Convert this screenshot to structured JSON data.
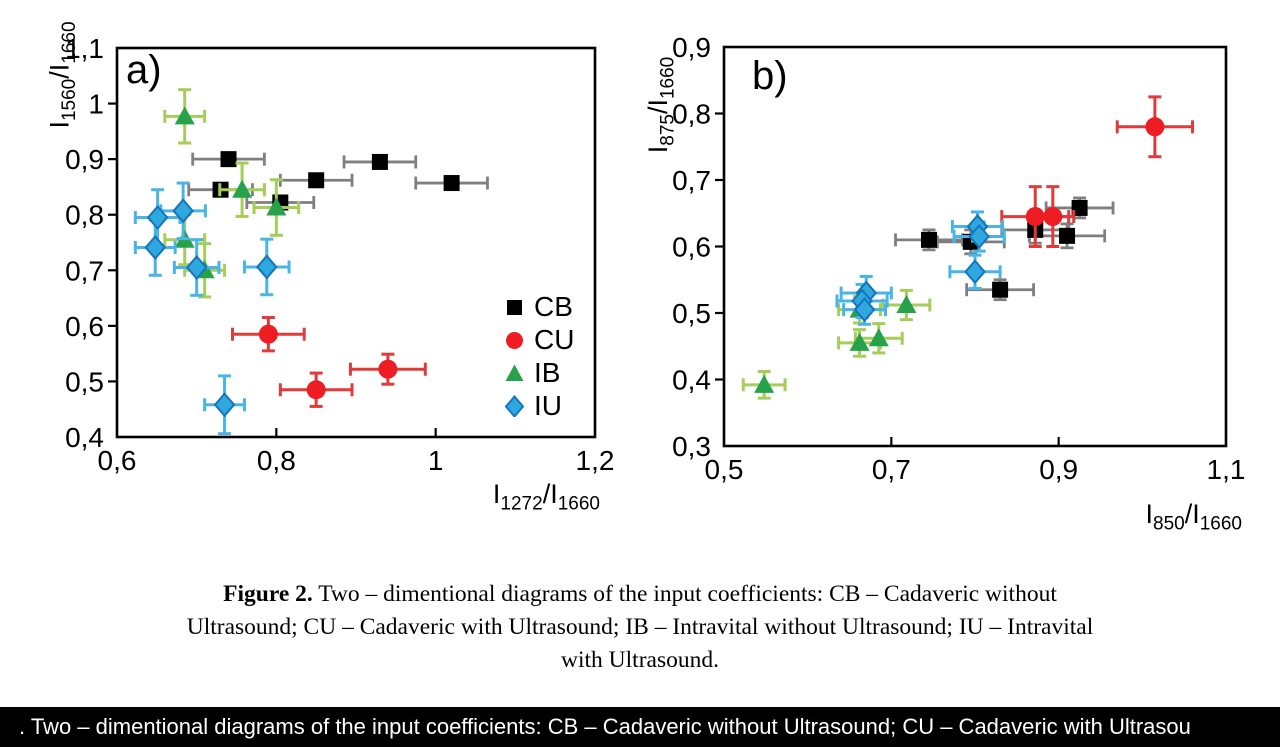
{
  "page": {
    "background": "#ffffff"
  },
  "colors": {
    "cb_marker": "#000000",
    "cb_errorbar": "#7f7f7f",
    "cu_marker": "#ee1d23",
    "cu_errorbar": "#e03a3a",
    "ib_marker": "#27a24b",
    "ib_errorbar": "#a4cd5a",
    "iu_marker_fill": "#2fa8df",
    "iu_marker_stroke": "#1574ba",
    "iu_errorbar": "#49b5e7",
    "bar_background": "#000000",
    "bar_text": "#ffffff"
  },
  "chart_data": [
    {
      "type": "scatter",
      "tag": "a)",
      "xlabel": "I1272/I1660",
      "ylabel": "I1560/I1660",
      "xlabel_parts": {
        "base1": "I",
        "sub1": "1272",
        "base2": "/I",
        "sub2": "1660"
      },
      "ylabel_parts": {
        "base1": "I",
        "sub1": "1560",
        "base2": "/I",
        "sub2": "1660"
      },
      "xlim": [
        0.6,
        1.2
      ],
      "ylim": [
        0.4,
        1.1
      ],
      "x_tick_values": [
        0.6,
        0.8,
        1.0,
        1.2
      ],
      "x_tick_labels": [
        "0,6",
        "0,8",
        "1",
        "1,2"
      ],
      "y_tick_values": [
        1.1,
        1.0,
        0.9,
        0.8,
        0.7,
        0.6,
        0.5,
        0.4
      ],
      "y_tick_labels": [
        "1,1",
        "1",
        "0,9",
        "0,8",
        "0,7",
        "0,6",
        "0,5",
        "0,4"
      ],
      "grid": false,
      "legend_position": "lower right inside",
      "series": [
        {
          "name": "CB",
          "marker": "square",
          "color": "#000000",
          "stroke": "none",
          "err_color": "#7f7f7f",
          "points": [
            [
              0.74,
              0.9,
              0.045,
              0
            ],
            [
              0.93,
              0.895,
              0.045,
              0
            ],
            [
              0.85,
              0.862,
              0.045,
              0
            ],
            [
              1.02,
              0.857,
              0.045,
              0
            ],
            [
              0.73,
              0.845,
              0.04,
              0
            ],
            [
              0.805,
              0.822,
              0.042,
              0
            ]
          ]
        },
        {
          "name": "CU",
          "marker": "circle",
          "color": "#ee1d23",
          "stroke": "none",
          "err_color": "#e03a3a",
          "points": [
            [
              0.79,
              0.585,
              0.045,
              0.03
            ],
            [
              0.94,
              0.522,
              0.047,
              0.027
            ],
            [
              0.85,
              0.485,
              0.045,
              0.03
            ]
          ]
        },
        {
          "name": "IB",
          "marker": "triangle",
          "color": "#27a24b",
          "stroke": "none",
          "err_color": "#a4cd5a",
          "points": [
            [
              0.685,
              0.977,
              0.025,
              0.048
            ],
            [
              0.757,
              0.845,
              0.028,
              0.048
            ],
            [
              0.8,
              0.813,
              0.028,
              0.05
            ],
            [
              0.685,
              0.755,
              0.025,
              0.045
            ],
            [
              0.71,
              0.7,
              0.025,
              0.048
            ]
          ]
        },
        {
          "name": "IU",
          "marker": "diamond",
          "color": "#2fa8df",
          "stroke": "#1574ba",
          "err_color": "#49b5e7",
          "points": [
            [
              0.683,
              0.807,
              0.028,
              0.05
            ],
            [
              0.651,
              0.795,
              0.028,
              0.05
            ],
            [
              0.648,
              0.741,
              0.025,
              0.05
            ],
            [
              0.7,
              0.705,
              0.028,
              0.05
            ],
            [
              0.788,
              0.706,
              0.028,
              0.05
            ],
            [
              0.735,
              0.458,
              0.025,
              0.052
            ]
          ]
        }
      ]
    },
    {
      "type": "scatter",
      "tag": "b)",
      "xlabel": "I850/I1660",
      "ylabel": "I875/I1660",
      "xlabel_parts": {
        "base1": "I",
        "sub1": "850",
        "base2": "/I",
        "sub2": "1660"
      },
      "ylabel_parts": {
        "base1": "I",
        "sub1": "875",
        "base2": "/I",
        "sub2": "1660"
      },
      "xlim": [
        0.5,
        1.1
      ],
      "ylim": [
        0.3,
        0.9
      ],
      "x_tick_values": [
        0.5,
        0.7,
        0.9,
        1.1
      ],
      "x_tick_labels": [
        "0,5",
        "0,7",
        "0,9",
        "1,1"
      ],
      "y_tick_values": [
        0.9,
        0.8,
        0.7,
        0.6,
        0.5,
        0.4,
        0.3
      ],
      "y_tick_labels": [
        "0,9",
        "0,8",
        "0,7",
        "0,6",
        "0,5",
        "0,4",
        "0,3"
      ],
      "grid": false,
      "legend_position": "none",
      "series": [
        {
          "name": "CB",
          "marker": "square",
          "color": "#000000",
          "stroke": "none",
          "err_color": "#7f7f7f",
          "points": [
            [
              0.745,
              0.61,
              0.04,
              0.015
            ],
            [
              0.795,
              0.607,
              0.04,
              0.018
            ],
            [
              0.872,
              0.625,
              0.04,
              0.02
            ],
            [
              0.91,
              0.616,
              0.045,
              0.018
            ],
            [
              0.925,
              0.658,
              0.04,
              0.015
            ],
            [
              0.83,
              0.535,
              0.04,
              0.015
            ]
          ]
        },
        {
          "name": "CU",
          "marker": "circle",
          "color": "#ee1d23",
          "stroke": "none",
          "err_color": "#e03a3a",
          "points": [
            [
              0.872,
              0.645,
              0.04,
              0.045
            ],
            [
              0.893,
              0.645,
              0.025,
              0.045
            ],
            [
              1.015,
              0.78,
              0.045,
              0.045
            ]
          ]
        },
        {
          "name": "IB",
          "marker": "triangle",
          "color": "#27a24b",
          "stroke": "none",
          "err_color": "#a4cd5a",
          "points": [
            [
              0.662,
              0.505,
              0.025,
              0.02
            ],
            [
              0.718,
              0.512,
              0.028,
              0.022
            ],
            [
              0.662,
              0.455,
              0.025,
              0.02
            ],
            [
              0.685,
              0.462,
              0.028,
              0.022
            ],
            [
              0.548,
              0.392,
              0.025,
              0.02
            ]
          ]
        },
        {
          "name": "IU",
          "marker": "diamond",
          "color": "#2fa8df",
          "stroke": "#1574ba",
          "err_color": "#49b5e7",
          "points": [
            [
              0.803,
              0.63,
              0.03,
              0.022
            ],
            [
              0.805,
              0.615,
              0.03,
              0.022
            ],
            [
              0.8,
              0.562,
              0.03,
              0.025
            ],
            [
              0.67,
              0.53,
              0.03,
              0.025
            ],
            [
              0.665,
              0.518,
              0.03,
              0.025
            ],
            [
              0.668,
              0.505,
              0.025,
              0.022
            ]
          ]
        }
      ]
    }
  ],
  "caption": {
    "bold": "Figure 2.",
    "line1_rest": " Two – dimentional diagrams of the input coefficients: CB – Cadaveric without",
    "line2": "Ultrasound; CU – Cadaveric with Ultrasound; IB – Intravital without Ultrasound; IU – Intravital",
    "line3": "with Ultrasound."
  },
  "bottom_bar": {
    "text": ". Two – dimentional diagrams of the input coefficients: CB – Cadaveric without Ultrasound; CU – Cadaveric with Ultrasou"
  }
}
